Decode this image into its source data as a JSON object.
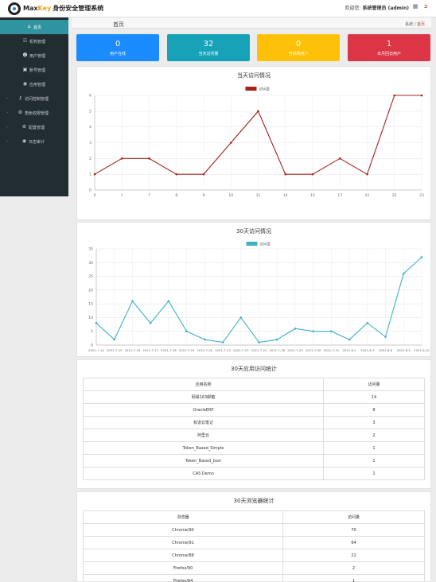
{
  "header": {
    "brand_max": "Max",
    "brand_key": "Key",
    "brand_title": "身份安全管理系统",
    "welcome_prefix": "欢迎您:",
    "user": "系统管理员 (admin)",
    "menu_icon": "grid-icon",
    "logout_icon": "logout-icon"
  },
  "sidebar": {
    "items": [
      {
        "label": "首页",
        "icon": "home-icon",
        "active": true
      },
      {
        "label": "机构管理",
        "icon": "sitemap-icon"
      },
      {
        "label": "用户管理",
        "icon": "user-icon"
      },
      {
        "label": "账号管理",
        "icon": "id-card-icon"
      },
      {
        "label": "应用管理",
        "icon": "globe-icon"
      },
      {
        "label": "访问控制管理",
        "icon": "key-icon",
        "expandable": true
      },
      {
        "label": "角色权限管理",
        "icon": "gears-icon",
        "expandable": true
      },
      {
        "label": "配置管理",
        "icon": "gear-icon",
        "expandable": true
      },
      {
        "label": "日志审计",
        "icon": "eye-icon",
        "expandable": true
      }
    ]
  },
  "page": {
    "title": "首页",
    "breadcrumb_root": "系统",
    "breadcrumb_sep": "/",
    "breadcrumb_current": "首页"
  },
  "stats": [
    {
      "value": "0",
      "label": "用户在线",
      "color": "#1a8cff"
    },
    {
      "value": "32",
      "label": "当天访问量",
      "color": "#17a2b8"
    },
    {
      "value": "0",
      "label": "当前新用户",
      "color": "#ffc107"
    },
    {
      "value": "1",
      "label": "本月回访用户",
      "color": "#dc3545"
    }
  ],
  "daily_panel": {
    "title": "当天访问情况"
  },
  "monthly_panel": {
    "title": "30天访问情况"
  },
  "chart_data": [
    {
      "type": "line",
      "title": "当天访问情况",
      "x": [
        "0",
        "1",
        "7",
        "8",
        "9",
        "10",
        "11",
        "14",
        "15",
        "17",
        "21",
        "22",
        "23"
      ],
      "series": [
        {
          "name": "访问量",
          "values": [
            1,
            2,
            2,
            1,
            1,
            3,
            5,
            1,
            1,
            2,
            1,
            6,
            6
          ],
          "color": "#a8201a"
        }
      ],
      "ylim": [
        0,
        6
      ],
      "yticks": [
        0,
        1,
        2,
        3,
        4,
        5,
        6
      ],
      "grid": true,
      "legend": "top-center"
    },
    {
      "type": "line",
      "title": "30天访问情况",
      "x": [
        "2021-7-14",
        "2021-7-15",
        "2021-7-16",
        "2021-7-17",
        "2021-7-18",
        "2021-7-19",
        "2021-7-20",
        "2021-7-22",
        "2021-7-23",
        "2021-7-24",
        "2021-7-28",
        "2021-7-29",
        "2021-7-30",
        "2021-7-31",
        "2021-8-1",
        "2021-8-7",
        "2021-8-8",
        "2021-8-9",
        "2021-8-10"
      ],
      "series": [
        {
          "name": "访问量",
          "values": [
            8,
            2,
            16,
            8,
            16,
            5,
            2,
            1,
            10,
            1,
            2,
            6,
            5,
            5,
            2,
            8,
            3,
            26,
            32
          ],
          "color": "#3cb3c1"
        }
      ],
      "ylim": [
        0,
        35
      ],
      "yticks": [
        0,
        5,
        10,
        15,
        20,
        25,
        30,
        35
      ],
      "grid": true,
      "legend": "top-center"
    }
  ],
  "app_table": {
    "title": "30天应用访问统计",
    "headers": [
      "应用名称",
      "访问量"
    ],
    "rows": [
      [
        "网易163邮箱",
        "14"
      ],
      [
        "OracleERP",
        "8"
      ],
      [
        "有道云笔记",
        "3"
      ],
      [
        "阿里云",
        "2"
      ],
      [
        "Token_Based_Simple",
        "1"
      ],
      [
        "Token_Based_Json",
        "1"
      ],
      [
        "CAS Demo",
        "1"
      ]
    ]
  },
  "browser_table": {
    "title": "30天浏览器统计",
    "headers": [
      "浏览器",
      "访问量"
    ],
    "rows": [
      [
        "Chrome/90",
        "70"
      ],
      [
        "Chrome/91",
        "64"
      ],
      [
        "Chrome/88",
        "21"
      ],
      [
        "Firefox/90",
        "2"
      ],
      [
        "Firefox/84",
        "1"
      ]
    ]
  }
}
